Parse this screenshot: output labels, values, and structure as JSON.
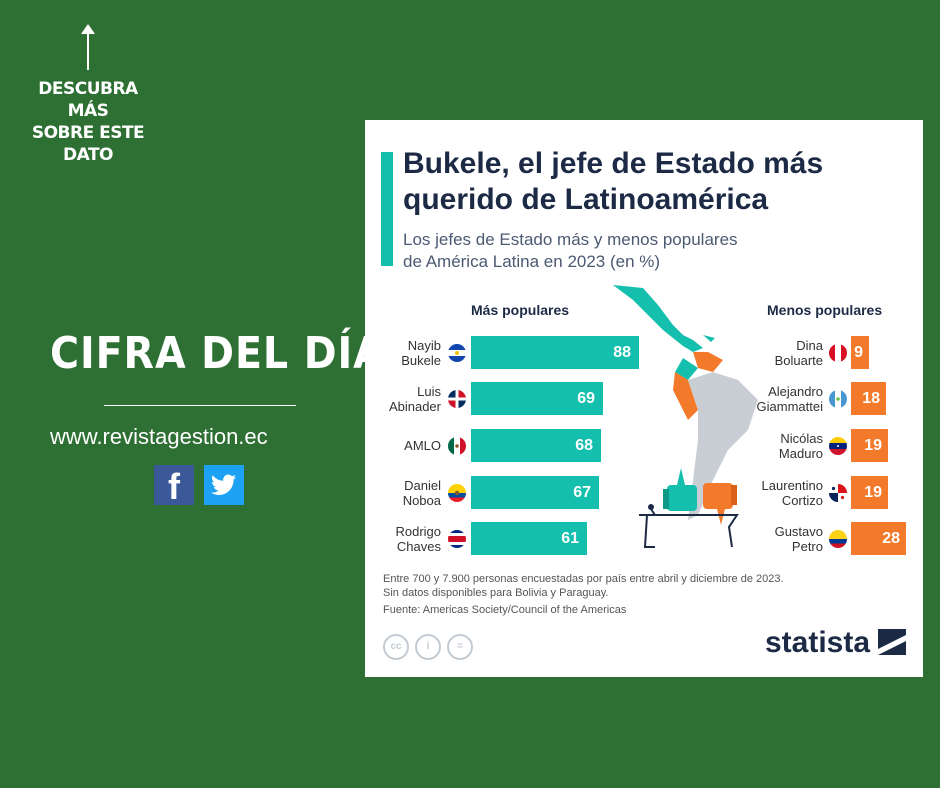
{
  "left_panel": {
    "cta_line1": "DESCUBRA MÁS",
    "cta_line2": "SOBRE ESTE",
    "cta_line3": "DATO",
    "headline": "CIFRA DEL DÍA",
    "website": "www.revistagestion.ec",
    "social": [
      "facebook-icon",
      "twitter-icon"
    ]
  },
  "chart_data": {
    "type": "bar",
    "title_line1": "Bukele, el jefe de Estado más",
    "title_line2": "querido de Latinoamérica",
    "subtitle_line1": "Los jefes de Estado más y menos populares",
    "subtitle_line2": "de América Latina en 2023 (en %)",
    "series": [
      {
        "name": "Más populares",
        "categories": [
          [
            "Nayib",
            "Bukele"
          ],
          [
            "Luis",
            "Abinader"
          ],
          [
            "AMLO"
          ],
          [
            "Daniel",
            "Noboa"
          ],
          [
            "Rodrigo",
            "Chaves"
          ]
        ],
        "values": [
          88,
          69,
          68,
          67,
          61
        ],
        "flags": [
          "el-salvador",
          "dominican-republic",
          "mexico",
          "ecuador",
          "costa-rica"
        ]
      },
      {
        "name": "Menos populares",
        "categories": [
          [
            "Dina",
            "Boluarte"
          ],
          [
            "Alejandro",
            "Giammattei"
          ],
          [
            "Nicólas",
            "Maduro"
          ],
          [
            "Laurentino",
            "Cortizo"
          ],
          [
            "Gustavo",
            "Petro"
          ]
        ],
        "values": [
          9,
          18,
          19,
          19,
          28
        ],
        "flags": [
          "peru",
          "guatemala",
          "venezuela",
          "panama",
          "colombia"
        ]
      }
    ],
    "colors": {
      "popular": "#14bfae",
      "unpopular": "#f47a2b"
    },
    "note_line1": "Entre 700 y 7.900 personas encuestadas por país entre abril y diciembre de 2023.",
    "note_line2": "Sin datos disponibles para Bolivia y Paraguay.",
    "source": "Fuente: Americas Society/Council of the Americas",
    "brand": "statista"
  }
}
